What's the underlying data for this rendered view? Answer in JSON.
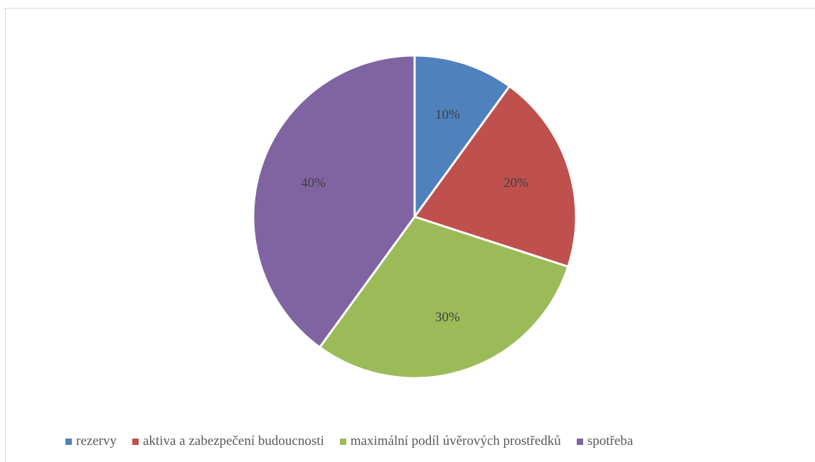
{
  "chart_data": {
    "type": "pie",
    "categories": [
      "rezervy",
      "aktiva a zabezpečení budoucnosti",
      "maximální podíl úvěrových prostředků",
      "spotřeba"
    ],
    "values": [
      10,
      20,
      30,
      40
    ],
    "labels": [
      "10%",
      "20%",
      "30%",
      "40%"
    ],
    "colors": [
      "#4f81bd",
      "#c0504d",
      "#9bbb59",
      "#8064a2"
    ],
    "legend_position": "bottom",
    "title": ""
  }
}
